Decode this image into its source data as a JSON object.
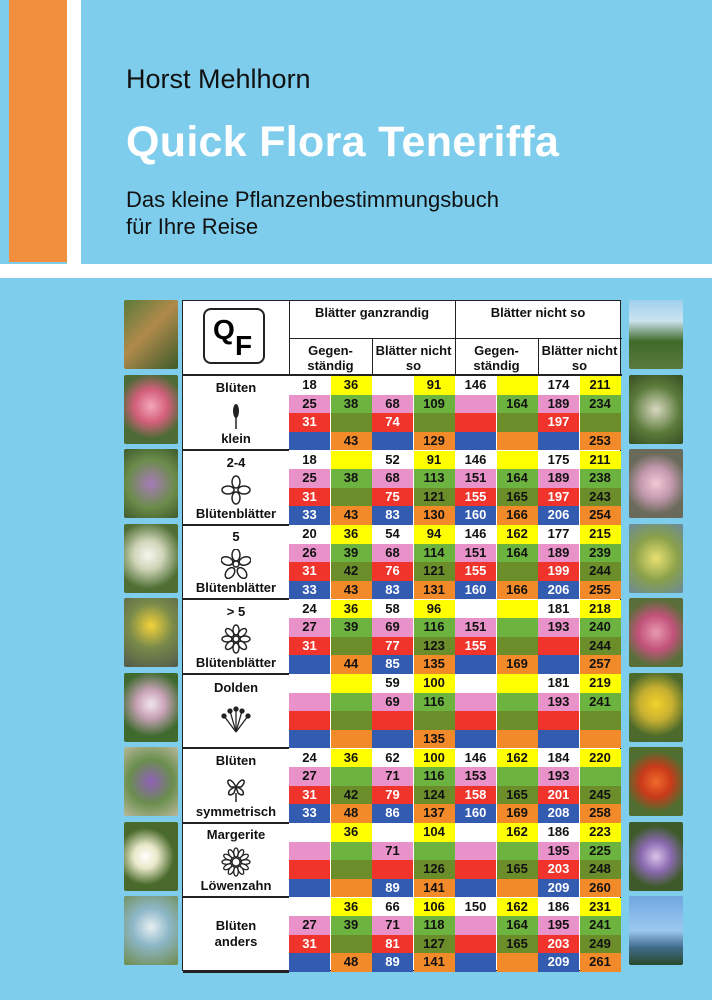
{
  "cover": {
    "author": "Horst Mehlhorn",
    "title": "Quick Flora Teneriffa",
    "subtitle_line1": "Das kleine Pflanzenbestimmungsbuch",
    "subtitle_line2": "für Ihre Reise"
  },
  "colors": {
    "background": "#7ecdec",
    "accent_orange": "#f18f3f",
    "row_colors": [
      "#ffff00",
      "#e892c9",
      "#f0342c",
      "#335bb0"
    ],
    "alt_colors": [
      "#ffffff",
      "#6db33f",
      "#6b8e2b",
      "#f28a2a"
    ]
  },
  "table": {
    "logo_q": "Q",
    "logo_f": "F",
    "header_top": [
      "Blätter ganzrandig",
      "Blätter nicht so"
    ],
    "header_sub": [
      "Gegen-ständig",
      "Blätter nicht so",
      "Gegen-ständig",
      "Blätter nicht so"
    ],
    "groups": [
      {
        "line1": "Blüten",
        "line2": "klein",
        "icon": "spike-icon",
        "rows": [
          [
            "18",
            "36",
            "",
            "91",
            "146",
            "",
            "174",
            "211"
          ],
          [
            "25",
            "38",
            "68",
            "109",
            "",
            "164",
            "189",
            "234"
          ],
          [
            "31",
            "",
            "74",
            "",
            "",
            "",
            "197",
            ""
          ],
          [
            "",
            "43",
            "",
            "129",
            "",
            "",
            "",
            "253"
          ]
        ]
      },
      {
        "line1": "2-4",
        "line2": "Blütenblätter",
        "icon": "four-petal-icon",
        "rows": [
          [
            "18",
            "",
            "52",
            "91",
            "146",
            "",
            "175",
            "211"
          ],
          [
            "25",
            "38",
            "68",
            "113",
            "151",
            "164",
            "189",
            "238"
          ],
          [
            "31",
            "",
            "75",
            "121",
            "155",
            "165",
            "197",
            "243"
          ],
          [
            "33",
            "43",
            "83",
            "130",
            "160",
            "166",
            "206",
            "254"
          ]
        ]
      },
      {
        "line1": "5",
        "line2": "Blütenblätter",
        "icon": "five-petal-icon",
        "rows": [
          [
            "20",
            "36",
            "54",
            "94",
            "146",
            "162",
            "177",
            "215"
          ],
          [
            "26",
            "39",
            "68",
            "114",
            "151",
            "164",
            "189",
            "239"
          ],
          [
            "31",
            "42",
            "76",
            "121",
            "155",
            "",
            "199",
            "244"
          ],
          [
            "33",
            "43",
            "83",
            "131",
            "160",
            "166",
            "206",
            "255"
          ]
        ]
      },
      {
        "line1": "> 5",
        "line2": "Blütenblätter",
        "icon": "many-petal-icon",
        "rows": [
          [
            "24",
            "36",
            "58",
            "96",
            "",
            "",
            "181",
            "218"
          ],
          [
            "27",
            "39",
            "69",
            "116",
            "151",
            "",
            "193",
            "240"
          ],
          [
            "31",
            "",
            "77",
            "123",
            "155",
            "",
            "",
            "244"
          ],
          [
            "",
            "44",
            "85",
            "135",
            "",
            "169",
            "",
            "257"
          ]
        ]
      },
      {
        "line1": "Dolden",
        "line2": "",
        "icon": "umbel-icon",
        "rows": [
          [
            "",
            "",
            "59",
            "100",
            "",
            "",
            "181",
            "219"
          ],
          [
            "",
            "",
            "69",
            "116",
            "",
            "",
            "193",
            "241"
          ],
          [
            "",
            "",
            "",
            "",
            "",
            "",
            "",
            ""
          ],
          [
            "",
            "",
            "",
            "135",
            "",
            "",
            "",
            ""
          ]
        ]
      },
      {
        "line1": "Blüten",
        "line2": "symmetrisch",
        "icon": "symmetric-flower-icon",
        "rows": [
          [
            "24",
            "36",
            "62",
            "100",
            "146",
            "162",
            "184",
            "220"
          ],
          [
            "27",
            "",
            "71",
            "116",
            "153",
            "",
            "193",
            ""
          ],
          [
            "31",
            "42",
            "79",
            "124",
            "158",
            "165",
            "201",
            "245"
          ],
          [
            "33",
            "48",
            "86",
            "137",
            "160",
            "169",
            "208",
            "258"
          ]
        ]
      },
      {
        "line1": "Margerite",
        "line2": "Löwenzahn",
        "icon": "daisy-icon",
        "rows": [
          [
            "",
            "36",
            "",
            "104",
            "",
            "162",
            "186",
            "223"
          ],
          [
            "",
            "",
            "71",
            "",
            "",
            "",
            "195",
            "225"
          ],
          [
            "",
            "",
            "",
            "126",
            "",
            "165",
            "203",
            "248"
          ],
          [
            "",
            "",
            "89",
            "141",
            "",
            "",
            "209",
            "260"
          ]
        ]
      },
      {
        "line1": "Blüten",
        "line2": "anders",
        "icon": "",
        "rows": [
          [
            "",
            "36",
            "66",
            "106",
            "150",
            "162",
            "186",
            "231"
          ],
          [
            "27",
            "39",
            "71",
            "118",
            "",
            "164",
            "195",
            "241"
          ],
          [
            "31",
            "",
            "81",
            "127",
            "",
            "165",
            "203",
            "249"
          ],
          [
            "",
            "48",
            "89",
            "141",
            "",
            "",
            "209",
            "261"
          ]
        ]
      }
    ]
  }
}
